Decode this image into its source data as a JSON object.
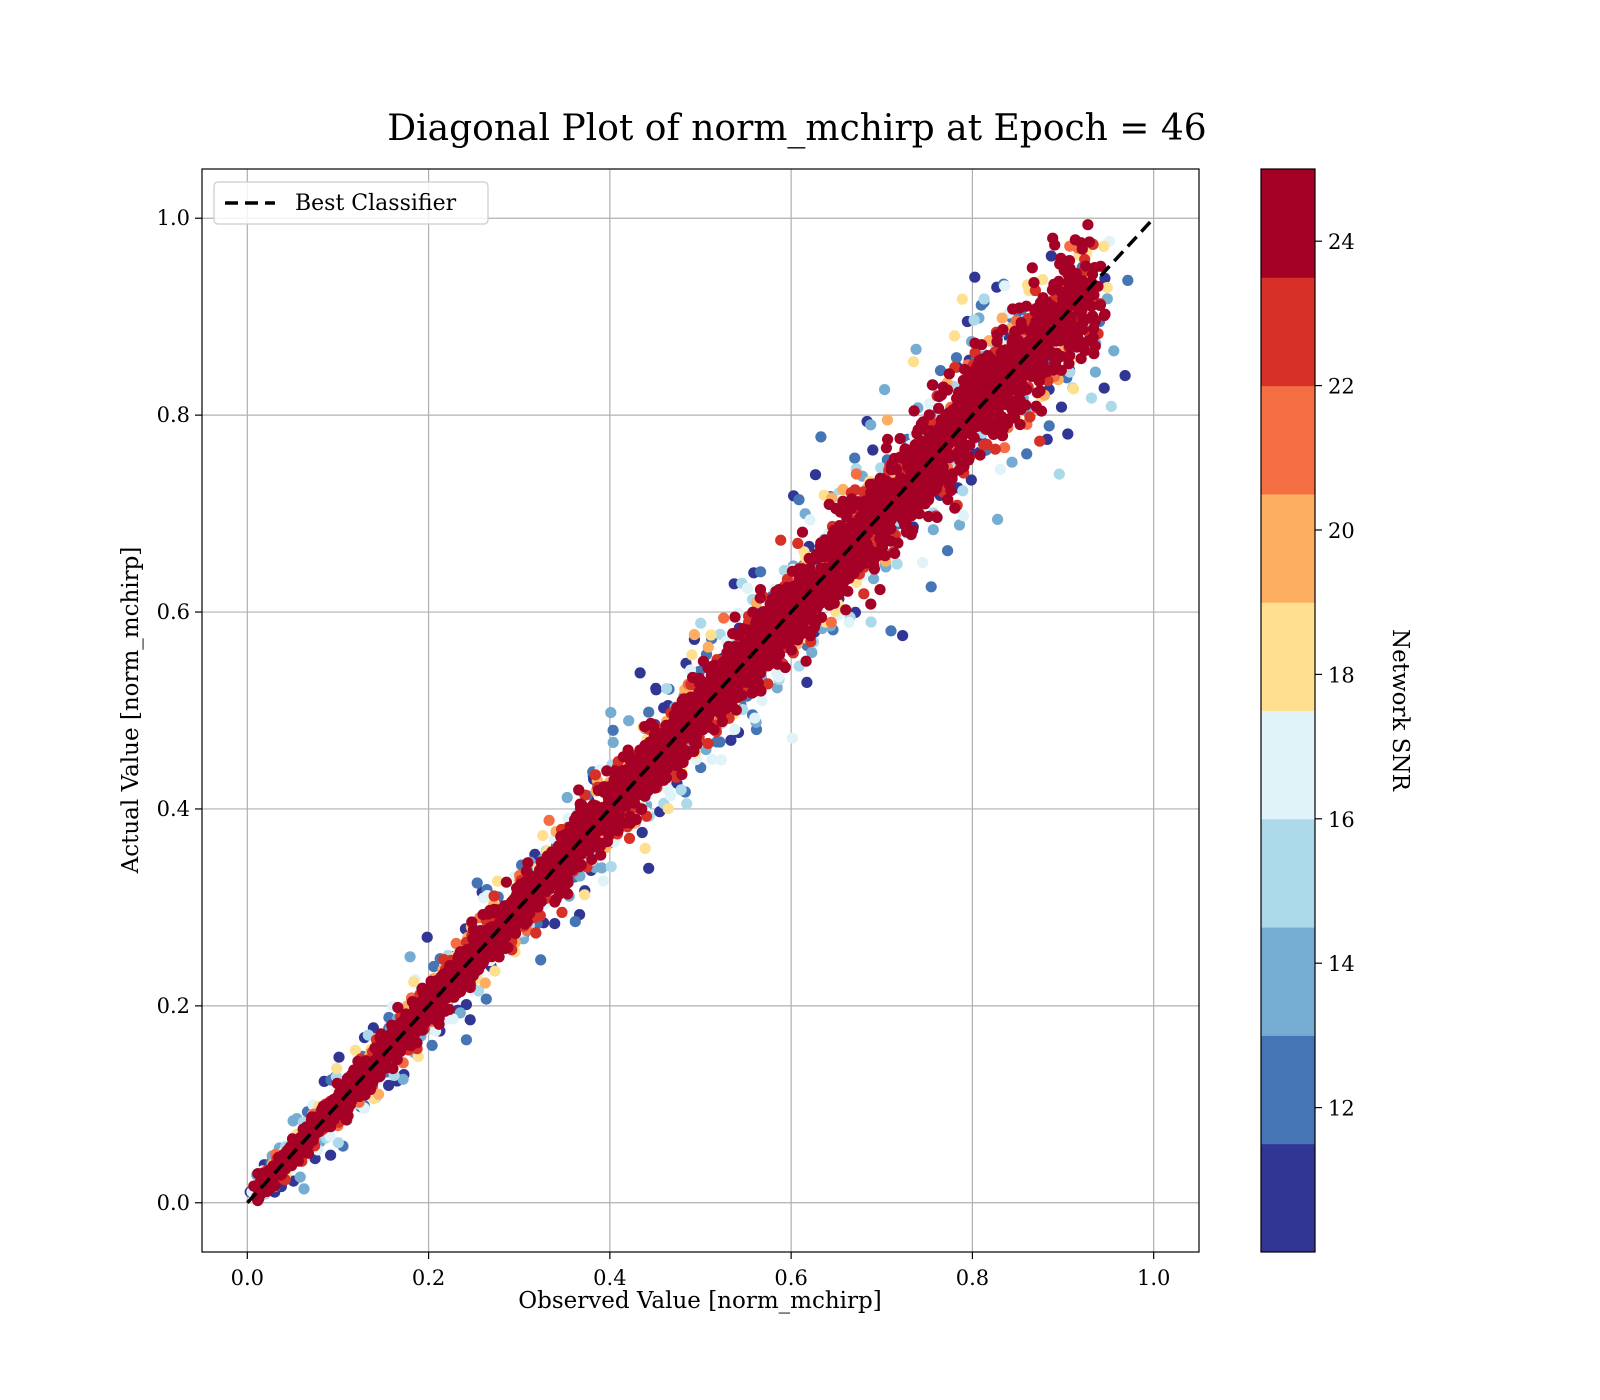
{
  "chart_data": {
    "type": "scatter",
    "title": "Diagonal Plot of norm_mchirp at Epoch = 46",
    "xlabel": "Observed Value [norm_mchirp]",
    "ylabel": "Actual Value [norm_mchirp]",
    "xlim": [
      -0.05,
      1.05
    ],
    "ylim": [
      -0.05,
      1.05
    ],
    "xticks": [
      0.0,
      0.2,
      0.4,
      0.6,
      0.8,
      1.0
    ],
    "yticks": [
      0.0,
      0.2,
      0.4,
      0.6,
      0.8,
      1.0
    ],
    "xtick_labels": [
      "0.0",
      "0.2",
      "0.4",
      "0.6",
      "0.8",
      "1.0"
    ],
    "ytick_labels": [
      "0.0",
      "0.2",
      "0.4",
      "0.6",
      "0.8",
      "1.0"
    ],
    "grid": true,
    "legend": {
      "placement": "upper-left",
      "entries": [
        "Best Classifier"
      ]
    },
    "reference_line": {
      "name": "Best Classifier",
      "style": "dashed",
      "color": "#000000",
      "x": [
        0.0,
        1.0
      ],
      "y": [
        0.0,
        1.0
      ]
    },
    "points": {
      "x_range": [
        0.01,
        0.93
      ],
      "y_range": [
        0.0,
        1.0
      ],
      "approx_count": 12000,
      "trend": "clustered along y = x; spread widens with x; high SNR points lie near the diagonal, low SNR points scatter farther"
    },
    "colorbar": {
      "label": "Network SNR",
      "range": [
        10,
        25
      ],
      "ticks": [
        12,
        14,
        16,
        18,
        20,
        22,
        24
      ],
      "tick_labels": [
        "12",
        "14",
        "16",
        "18",
        "20",
        "22",
        "24"
      ],
      "colors": [
        "#313695",
        "#4575b4",
        "#74add1",
        "#abd9e9",
        "#e0f3f8",
        "#fee090",
        "#fdae61",
        "#f46d43",
        "#d73027",
        "#a50026"
      ]
    }
  }
}
